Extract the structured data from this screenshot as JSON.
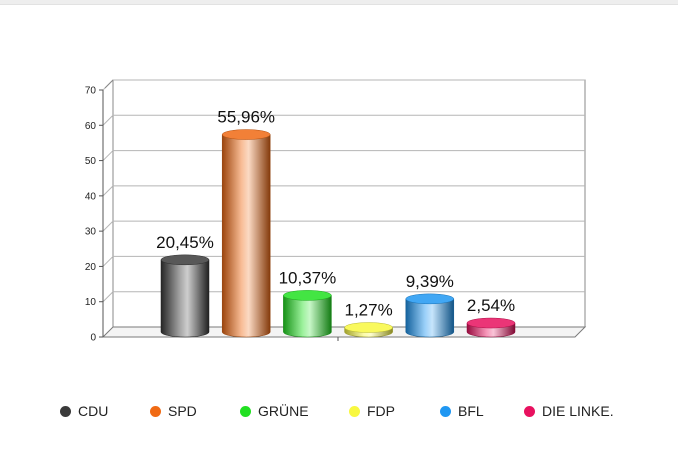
{
  "chart_data": {
    "type": "bar",
    "style": "3d-cylinder",
    "categories": [
      "CDU",
      "SPD",
      "GRÜNE",
      "FDP",
      "BFL",
      "DIE LINKE."
    ],
    "values": [
      20.45,
      55.96,
      10.37,
      1.27,
      9.39,
      2.54
    ],
    "data_labels": [
      "20,45%",
      "55,96%",
      "10,37%",
      "1,27%",
      "9,39%",
      "2,54%"
    ],
    "colors": [
      "#3a3a3a",
      "#f06a14",
      "#22e022",
      "#f8f840",
      "#1f97f2",
      "#e8115f"
    ],
    "ylim": [
      0,
      70
    ],
    "yticks": [
      0,
      10,
      20,
      30,
      40,
      50,
      60,
      70
    ],
    "grid": true,
    "legend_position": "bottom"
  }
}
